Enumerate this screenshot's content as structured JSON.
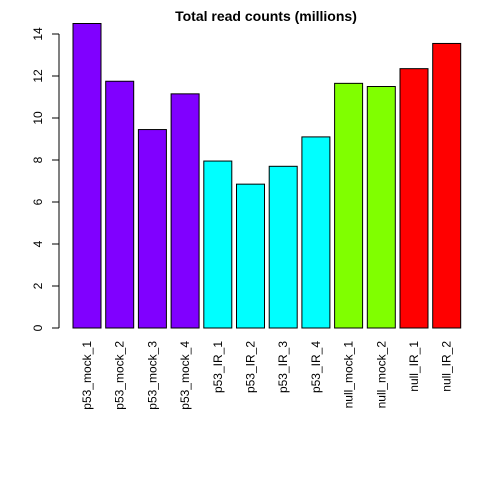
{
  "chart_data": {
    "type": "bar",
    "title": "Total read counts (millions)",
    "xlabel": "",
    "ylabel": "",
    "ylim": [
      0,
      14.5
    ],
    "yticks": [
      0,
      2,
      4,
      6,
      8,
      10,
      12,
      14
    ],
    "categories": [
      "p53_mock_1",
      "p53_mock_2",
      "p53_mock_3",
      "p53_mock_4",
      "p53_IR_1",
      "p53_IR_2",
      "p53_IR_3",
      "p53_IR_4",
      "null_mock_1",
      "null_mock_2",
      "null_IR_1",
      "null_IR_2"
    ],
    "values": [
      14.5,
      11.75,
      9.45,
      11.15,
      7.95,
      6.85,
      7.7,
      9.1,
      11.65,
      11.5,
      12.35,
      13.55
    ],
    "bar_colors": [
      "#8000FF",
      "#8000FF",
      "#8000FF",
      "#8000FF",
      "#00FFFF",
      "#00FFFF",
      "#00FFFF",
      "#00FFFF",
      "#80FF00",
      "#80FF00",
      "#FF0000",
      "#FF0000"
    ],
    "grid": false,
    "legend": "none"
  }
}
